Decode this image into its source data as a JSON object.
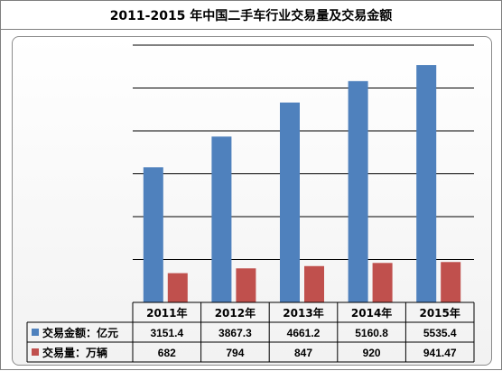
{
  "chart_data": {
    "type": "bar",
    "title": "2011-2015 年中国二手车行业交易量及交易金额",
    "categories": [
      "2011年",
      "2012年",
      "2013年",
      "2014年",
      "2015年"
    ],
    "series": [
      {
        "name": "交易金额：亿元",
        "values": [
          3151.4,
          3867.3,
          4661.2,
          5160.8,
          5535.4
        ],
        "labels": [
          "3151.4",
          "3867.3",
          "4661.2",
          "5160.8",
          "5535.4"
        ],
        "color": "#4f81bd"
      },
      {
        "name": "交易量：万辆",
        "values": [
          682,
          794,
          847,
          920,
          941.47
        ],
        "labels": [
          "682",
          "794",
          "847",
          "920",
          "941.47"
        ],
        "color": "#c0504d"
      }
    ],
    "ylim": [
      0,
      6000
    ],
    "grid": true,
    "legend": "data-table"
  }
}
